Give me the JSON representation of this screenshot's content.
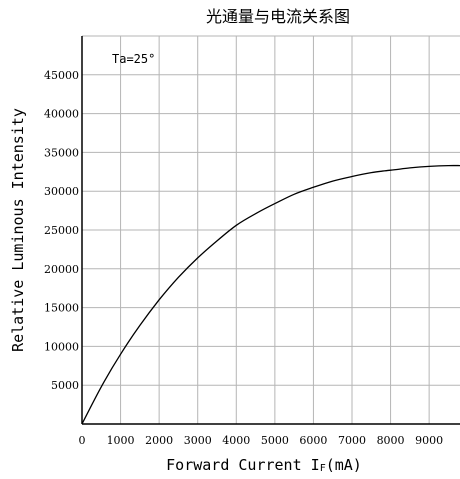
{
  "chart_data": {
    "type": "line",
    "title": "光通量与电流关系图",
    "xlabel_main": "Forward Current I",
    "xlabel_sub": "F",
    "xlabel_unit": "(mA)",
    "ylabel": "Relative Luminous Intensity",
    "annotation": "Ta=25°",
    "xlim": [
      0,
      9800
    ],
    "ylim": [
      0,
      50000
    ],
    "x_ticks": [
      0,
      1000,
      2000,
      3000,
      4000,
      5000,
      6000,
      7000,
      8000,
      9000
    ],
    "y_ticks": [
      5000,
      10000,
      15000,
      20000,
      25000,
      30000,
      35000,
      40000,
      45000
    ],
    "grid": true,
    "series": [
      {
        "x": [
          0,
          500,
          1000,
          1500,
          2000,
          2500,
          3000,
          3500,
          4000,
          4500,
          5000,
          5500,
          6000,
          6500,
          7000,
          7500,
          8000,
          8500,
          9000,
          9500,
          9800
        ],
        "y": [
          0,
          4800,
          9000,
          12700,
          16000,
          18900,
          21400,
          23600,
          25600,
          27100,
          28400,
          29600,
          30500,
          31300,
          31900,
          32400,
          32700,
          33000,
          33200,
          33300,
          33300
        ]
      }
    ]
  }
}
